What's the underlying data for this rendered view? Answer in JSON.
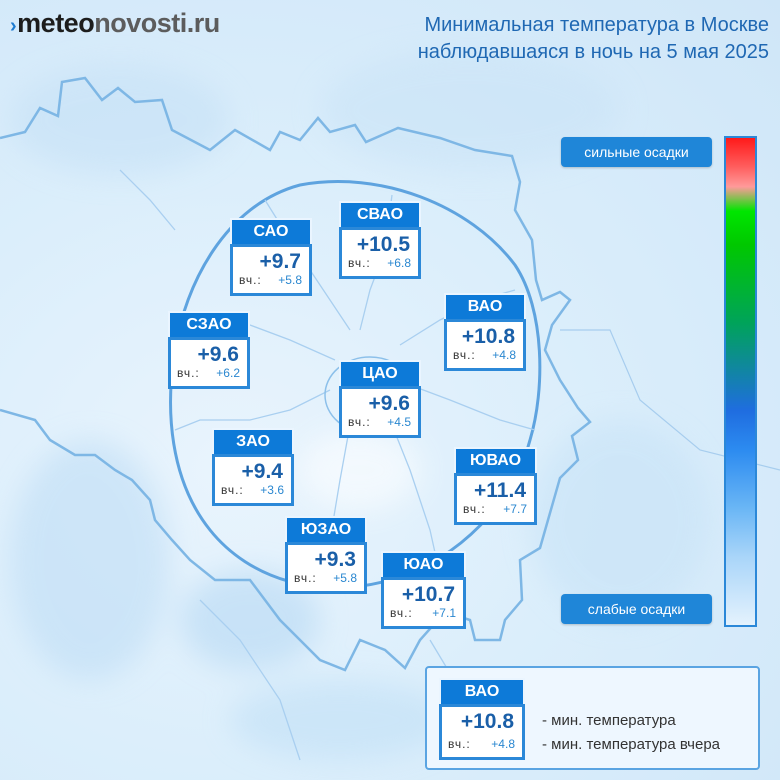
{
  "brand": {
    "prefix": "meteo",
    "suffix": "novosti.ru",
    "mark": "›"
  },
  "title": {
    "line1": "Минимальная температура в Москве",
    "line2": "наблюдавшаяся в ночь на 5 мая 2025"
  },
  "colors": {
    "accent": "#0d7ad8",
    "temp_text": "#1a5fa8",
    "title_text": "#1f68b3"
  },
  "districts": [
    {
      "name": "САО",
      "temp": "+9.7",
      "yesterday_label": "вч.:",
      "yesterday": "+5.8"
    },
    {
      "name": "СВАО",
      "temp": "+10.5",
      "yesterday_label": "вч.:",
      "yesterday": "+6.8"
    },
    {
      "name": "ВАО",
      "temp": "+10.8",
      "yesterday_label": "вч.:",
      "yesterday": "+4.8"
    },
    {
      "name": "СЗАО",
      "temp": "+9.6",
      "yesterday_label": "вч.:",
      "yesterday": "+6.2"
    },
    {
      "name": "ЦАО",
      "temp": "+9.6",
      "yesterday_label": "вч.:",
      "yesterday": "+4.5"
    },
    {
      "name": "ЗАО",
      "temp": "+9.4",
      "yesterday_label": "вч.:",
      "yesterday": "+3.6"
    },
    {
      "name": "ЮВАО",
      "temp": "+11.4",
      "yesterday_label": "вч.:",
      "yesterday": "+7.7"
    },
    {
      "name": "ЮЗАО",
      "temp": "+9.3",
      "yesterday_label": "вч.:",
      "yesterday": "+5.8"
    },
    {
      "name": "ЮАО",
      "temp": "+10.7",
      "yesterday_label": "вч.:",
      "yesterday": "+7.1"
    }
  ],
  "precip_scale": {
    "top_label": "сильные осадки",
    "bottom_label": "слабые осадки"
  },
  "legend": {
    "sample": {
      "name": "ВАО",
      "temp": "+10.8",
      "yesterday_label": "вч.:",
      "yesterday": "+4.8"
    },
    "min_temp_label": "- мин. температура",
    "min_temp_yesterday_label": "- мин. температура вчера"
  }
}
